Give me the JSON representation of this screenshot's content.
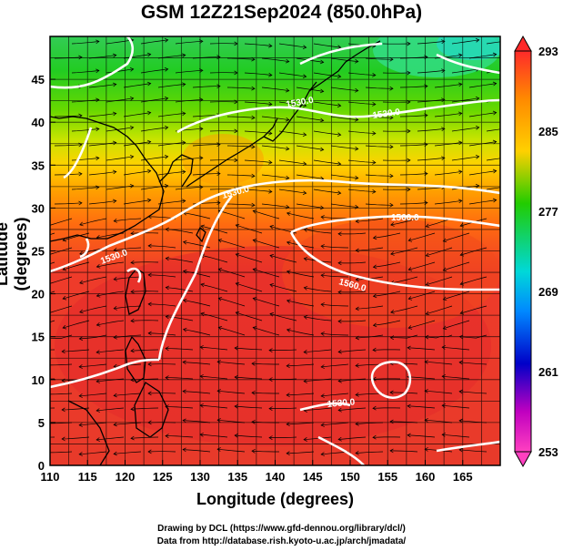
{
  "title": "GSM 12Z21Sep2024 (850.0hPa)",
  "x_axis": {
    "label": "Longitude (degrees)",
    "min": 110,
    "max": 170,
    "ticks": [
      110,
      115,
      120,
      125,
      130,
      135,
      140,
      145,
      150,
      155,
      160,
      165
    ]
  },
  "y_axis": {
    "label": "Latitude  (degrees)",
    "min": 0,
    "max": 50,
    "ticks": [
      0,
      5,
      10,
      15,
      20,
      25,
      30,
      35,
      40,
      45
    ]
  },
  "colorbar": {
    "labels": [
      "293",
      "285",
      "277",
      "269",
      "261",
      "253"
    ],
    "values": [
      293,
      285,
      277,
      269,
      261,
      253
    ],
    "colors": [
      "#ff2a2a",
      "#ff8a00",
      "#ffd000",
      "#22cc00",
      "#00d8d8",
      "#0088ff",
      "#0000c8",
      "#c000c0",
      "#ff40c0"
    ]
  },
  "field": {
    "name": "temperature (K) with geopotential height contours and wind streamlines",
    "contour_labels": [
      "1530.0",
      "1530.0",
      "1530.0",
      "1530.0",
      "1560.0",
      "1560.0",
      "1530.0"
    ],
    "highlight_color": "#ffffff"
  },
  "credits": {
    "line1": "Drawing by DCL (https://www.gfd-dennou.org/library/dcl/)",
    "line2": "Data from http://database.rish.kyoto-u.ac.jp/arch/jmadata/"
  }
}
